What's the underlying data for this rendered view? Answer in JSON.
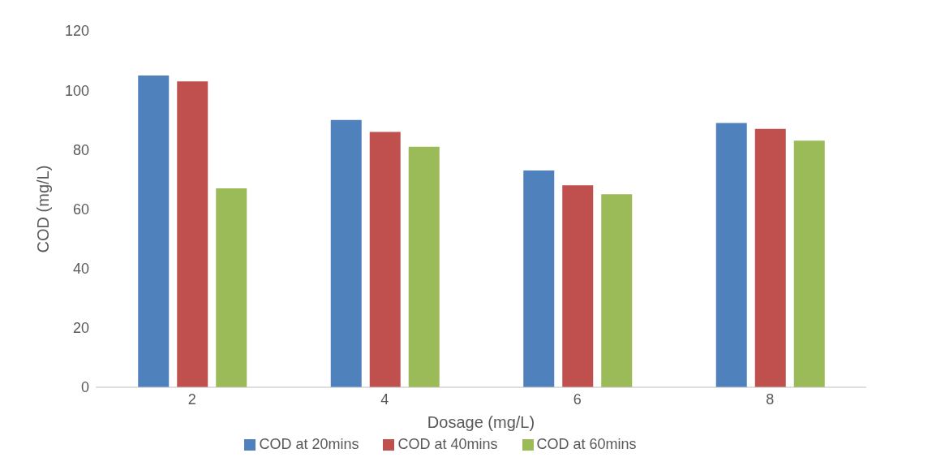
{
  "chart_data": {
    "type": "bar",
    "xlabel": "Dosage (mg/L)",
    "ylabel": "COD (mg/L)",
    "categories": [
      "2",
      "4",
      "6",
      "8"
    ],
    "series": [
      {
        "name": "COD at 20mins",
        "color": "#4f81bd",
        "values": [
          105,
          90,
          73,
          89
        ]
      },
      {
        "name": "COD at 40mins",
        "color": "#c0504d",
        "values": [
          103,
          86,
          68,
          87
        ]
      },
      {
        "name": "COD at 60mins",
        "color": "#9bbb59",
        "values": [
          67,
          81,
          65,
          83
        ]
      }
    ],
    "ylim": [
      0,
      120
    ],
    "yticks": [
      0,
      20,
      40,
      60,
      80,
      100,
      120
    ],
    "grid": false,
    "legend": "bottom"
  }
}
